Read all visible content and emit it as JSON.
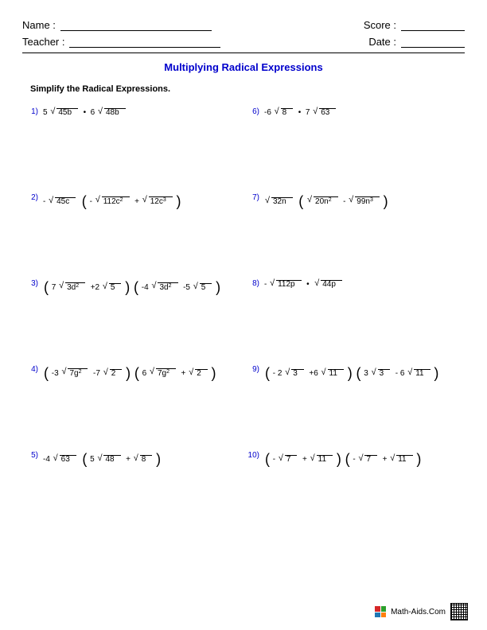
{
  "header": {
    "name_label": "Name :",
    "teacher_label": "Teacher :",
    "score_label": "Score :",
    "date_label": "Date :"
  },
  "title": {
    "text": "Multiplying Radical Expressions",
    "color": "#0000cc"
  },
  "instructions": "Simplify the Radical Expressions.",
  "number_color": "#0000cc",
  "problems": [
    {
      "n": "1)",
      "html": "5 <span class='rad'><span class='radic'>45b</span></span> &nbsp;•&nbsp; 6 <span class='rad'><span class='radic'>48b</span></span>"
    },
    {
      "n": "6)",
      "html": "-6 <span class='rad'><span class='radic'>8</span></span> &nbsp;•&nbsp; 7 <span class='rad'><span class='radic'>63</span></span>"
    },
    {
      "n": "2)",
      "html": "- <span class='rad'><span class='radic'>45c</span></span> &nbsp;<span class='lp'>(</span> - <span class='rad'><span class='radic'>112c<sup>2</sup></span></span> &nbsp;+ <span class='rad'><span class='radic'>12c<sup>3</sup></span></span> <span class='rp'>)</span>"
    },
    {
      "n": "7)",
      "html": "<span class='rad'><span class='radic'>32n</span></span> &nbsp;<span class='lp'>(</span> <span class='rad'><span class='radic'>20n<sup>2</sup></span></span> &nbsp;- <span class='rad'><span class='radic'>99n<sup>3</sup></span></span> <span class='rp'>)</span>"
    },
    {
      "n": "3)",
      "html": "<span class='lp'>(</span> 7 <span class='rad'><span class='radic'>3d<sup>2</sup></span></span> &nbsp;+2 <span class='rad'><span class='radic'>5</span></span> <span class='rp'>)</span> <span class='lp'>(</span> -4 <span class='rad'><span class='radic'>3d<sup>2</sup></span></span> &nbsp;-5 <span class='rad'><span class='radic'>5</span></span> <span class='rp'>)</span>"
    },
    {
      "n": "8)",
      "html": "- <span class='rad'><span class='radic'>112p</span></span> &nbsp;•&nbsp; <span class='rad'><span class='radic'>44p</span></span>"
    },
    {
      "n": "4)",
      "html": "<span class='lp'>(</span> -3 <span class='rad'><span class='radic'>7g<sup>2</sup></span></span> &nbsp;-7 <span class='rad'><span class='radic'>2</span></span> <span class='rp'>)</span> <span class='lp'>(</span> 6 <span class='rad'><span class='radic'>7g<sup>2</sup></span></span> &nbsp;+ <span class='rad'><span class='radic'>2</span></span> <span class='rp'>)</span>"
    },
    {
      "n": "9)",
      "html": "<span class='lp'>(</span> - 2 <span class='rad'><span class='radic'>3</span></span> &nbsp;+6 <span class='rad'><span class='radic'>11</span></span> <span class='rp'>)</span> <span class='lp'>(</span> 3 <span class='rad'><span class='radic'>3</span></span> &nbsp;- 6 <span class='rad'><span class='radic'>11</span></span> <span class='rp'>)</span>"
    },
    {
      "n": "5)",
      "html": "-4 <span class='rad'><span class='radic'>63</span></span> &nbsp;<span class='lp'>(</span> 5 <span class='rad'><span class='radic'>48</span></span> &nbsp;+ <span class='rad'><span class='radic'>8</span></span> <span class='rp'>)</span>"
    },
    {
      "n": "10)",
      "html": "<span class='lp'>(</span> - <span class='rad'><span class='radic'>7</span></span> &nbsp;+ <span class='rad'><span class='radic'>11</span></span> <span class='rp'>)</span> <span class='lp'>(</span> - <span class='rad'><span class='radic'>7</span></span> &nbsp;+ <span class='rad'><span class='radic'>11</span></span> <span class='rp'>)</span>"
    }
  ],
  "footer": {
    "text": "Math-Aids.Com",
    "logo_colors": [
      "#d62728",
      "#2ca02c",
      "#1f77b4",
      "#ff7f0e"
    ]
  }
}
